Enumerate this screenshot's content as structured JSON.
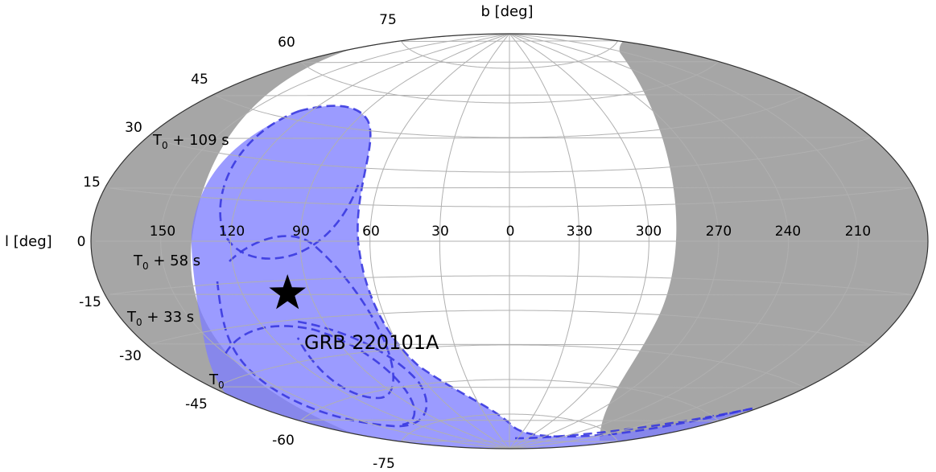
{
  "chart_data": {
    "type": "skymap",
    "projection": "aitoff",
    "xlabel": "l [deg]",
    "ylabel": "b [deg]",
    "lat_ticks": [
      -75,
      -60,
      -45,
      -30,
      -15,
      0,
      15,
      30,
      45,
      60,
      75
    ],
    "lon_ticks": [
      150,
      120,
      90,
      60,
      30,
      0,
      330,
      300,
      270,
      240,
      210
    ],
    "grid": true,
    "regions": [
      {
        "kind": "earth-occulted-left",
        "color": "#a6a6a6"
      },
      {
        "kind": "earth-occulted-right",
        "color": "#a6a6a6"
      },
      {
        "kind": "ipn-annulus-union",
        "color": "#7f7fff",
        "edge_color": "#3333dd",
        "edge_style": "dashed"
      }
    ],
    "annotations": [
      {
        "text": "T",
        "sub": "0",
        "suffix": " + 109 s"
      },
      {
        "text": "T",
        "sub": "0",
        "suffix": " + 58 s"
      },
      {
        "text": "T",
        "sub": "0",
        "suffix": " + 33 s"
      },
      {
        "text": "T",
        "sub": "0",
        "suffix": ""
      }
    ],
    "source": {
      "name": "GRB 220101A",
      "l": 100,
      "b": -20,
      "marker": "star",
      "color": "#000000"
    },
    "colors": {
      "occulted": "#a6a6a6",
      "annulus_fill": "#8080ff",
      "annulus_edge": "#3a3ae0"
    }
  }
}
